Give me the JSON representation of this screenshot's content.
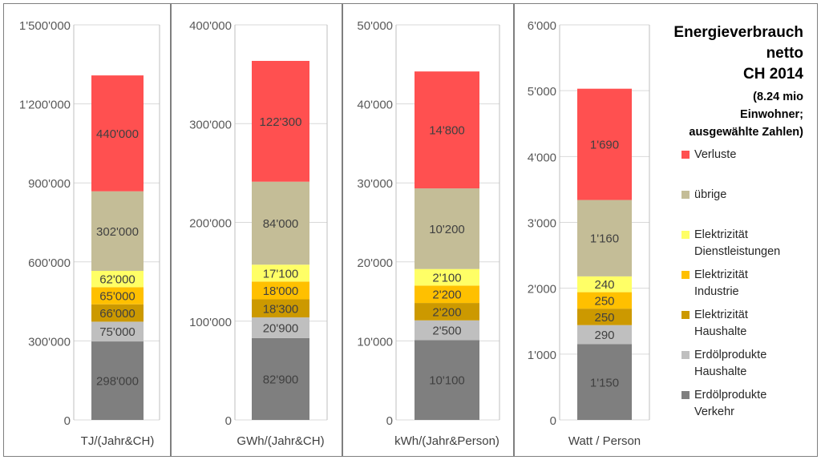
{
  "colors": {
    "verluste": "#ff5050",
    "uebrige": "#c4bd97",
    "el_dienst": "#ffff66",
    "el_industrie": "#ffc000",
    "el_haushalte": "#cc9900",
    "erdoel_haushalte": "#bfbfbf",
    "erdoel_verkehr": "#7f7f7f"
  },
  "legend": {
    "title_lines": [
      "Energieverbrauch",
      "netto",
      "CH 2014"
    ],
    "subtitle_lines": [
      "(8.24 mio",
      "Einwohner;",
      "ausgewählte  Zahlen)"
    ],
    "items": [
      {
        "key": "verluste",
        "lines": [
          "Verluste"
        ]
      },
      {
        "key": "uebrige",
        "lines": [
          "übrige"
        ]
      },
      {
        "key": "el_dienst",
        "lines": [
          "Elektrizität",
          "Dienstleistungen"
        ]
      },
      {
        "key": "el_industrie",
        "lines": [
          "Elektrizität",
          "Industrie"
        ]
      },
      {
        "key": "el_haushalte",
        "lines": [
          "Elektrizität",
          "Haushalte"
        ]
      },
      {
        "key": "erdoel_haushalte",
        "lines": [
          "Erdölprodukte",
          "Haushalte"
        ]
      },
      {
        "key": "erdoel_verkehr",
        "lines": [
          "Erdölprodukte",
          "Verkehr"
        ]
      }
    ]
  },
  "chart_data": [
    {
      "type": "bar",
      "stacked": true,
      "xlabel": "TJ/(Jahr&CH)",
      "ylim": [
        0,
        1500000
      ],
      "yticks": [
        0,
        300000,
        600000,
        900000,
        1200000,
        1500000
      ],
      "ytick_labels": [
        "0",
        "300'000",
        "600'000",
        "900'000",
        "1'200'000",
        "1'500'000"
      ],
      "series": [
        {
          "name": "Erdölprodukte Verkehr",
          "key": "erdoel_verkehr",
          "value": 298000,
          "label": "298'000"
        },
        {
          "name": "Erdölprodukte Haushalte",
          "key": "erdoel_haushalte",
          "value": 75000,
          "label": "75'000"
        },
        {
          "name": "Elektrizität Haushalte",
          "key": "el_haushalte",
          "value": 66000,
          "label": "66'000"
        },
        {
          "name": "Elektrizität Industrie",
          "key": "el_industrie",
          "value": 65000,
          "label": "65'000"
        },
        {
          "name": "Elektrizität Dienstleistungen",
          "key": "el_dienst",
          "value": 62000,
          "label": "62'000"
        },
        {
          "name": "übrige",
          "key": "uebrige",
          "value": 302000,
          "label": "302'000"
        },
        {
          "name": "Verluste",
          "key": "verluste",
          "value": 440000,
          "label": "440'000"
        }
      ]
    },
    {
      "type": "bar",
      "stacked": true,
      "xlabel": "GWh/(Jahr&CH)",
      "ylim": [
        0,
        400000
      ],
      "yticks": [
        0,
        100000,
        200000,
        300000,
        400000
      ],
      "ytick_labels": [
        "0",
        "100'000",
        "200'000",
        "300'000",
        "400'000"
      ],
      "series": [
        {
          "name": "Erdölprodukte Verkehr",
          "key": "erdoel_verkehr",
          "value": 82900,
          "label": "82'900"
        },
        {
          "name": "Erdölprodukte Haushalte",
          "key": "erdoel_haushalte",
          "value": 20900,
          "label": "20'900"
        },
        {
          "name": "Elektrizität Haushalte",
          "key": "el_haushalte",
          "value": 18300,
          "label": "18'300"
        },
        {
          "name": "Elektrizität Industrie",
          "key": "el_industrie",
          "value": 18000,
          "label": "18'000"
        },
        {
          "name": "Elektrizität Dienstleistungen",
          "key": "el_dienst",
          "value": 17100,
          "label": "17'100"
        },
        {
          "name": "übrige",
          "key": "uebrige",
          "value": 84000,
          "label": "84'000"
        },
        {
          "name": "Verluste",
          "key": "verluste",
          "value": 122300,
          "label": "122'300"
        }
      ]
    },
    {
      "type": "bar",
      "stacked": true,
      "xlabel": "kWh/(Jahr&Person)",
      "ylim": [
        0,
        50000
      ],
      "yticks": [
        0,
        10000,
        20000,
        30000,
        40000,
        50000
      ],
      "ytick_labels": [
        "0",
        "10'000",
        "20'000",
        "30'000",
        "40'000",
        "50'000"
      ],
      "series": [
        {
          "name": "Erdölprodukte Verkehr",
          "key": "erdoel_verkehr",
          "value": 10100,
          "label": "10'100"
        },
        {
          "name": "Erdölprodukte Haushalte",
          "key": "erdoel_haushalte",
          "value": 2500,
          "label": "2'500"
        },
        {
          "name": "Elektrizität Haushalte",
          "key": "el_haushalte",
          "value": 2200,
          "label": "2'200"
        },
        {
          "name": "Elektrizität Industrie",
          "key": "el_industrie",
          "value": 2200,
          "label": "2'200"
        },
        {
          "name": "Elektrizität Dienstleistungen",
          "key": "el_dienst",
          "value": 2100,
          "label": "2'100"
        },
        {
          "name": "übrige",
          "key": "uebrige",
          "value": 10200,
          "label": "10'200"
        },
        {
          "name": "Verluste",
          "key": "verluste",
          "value": 14800,
          "label": "14'800"
        }
      ]
    },
    {
      "type": "bar",
      "stacked": true,
      "xlabel": "Watt / Person",
      "ylim": [
        0,
        6000
      ],
      "yticks": [
        0,
        1000,
        2000,
        3000,
        4000,
        5000,
        6000
      ],
      "ytick_labels": [
        "0",
        "1'000",
        "2'000",
        "3'000",
        "4'000",
        "5'000",
        "6'000"
      ],
      "series": [
        {
          "name": "Erdölprodukte Verkehr",
          "key": "erdoel_verkehr",
          "value": 1150,
          "label": "1'150"
        },
        {
          "name": "Erdölprodukte Haushalte",
          "key": "erdoel_haushalte",
          "value": 290,
          "label": "290"
        },
        {
          "name": "Elektrizität Haushalte",
          "key": "el_haushalte",
          "value": 250,
          "label": "250"
        },
        {
          "name": "Elektrizität Industrie",
          "key": "el_industrie",
          "value": 250,
          "label": "250"
        },
        {
          "name": "Elektrizität Dienstleistungen",
          "key": "el_dienst",
          "value": 240,
          "label": "240"
        },
        {
          "name": "übrige",
          "key": "uebrige",
          "value": 1160,
          "label": "1'160"
        },
        {
          "name": "Verluste",
          "key": "verluste",
          "value": 1690,
          "label": "1'690"
        }
      ]
    }
  ]
}
